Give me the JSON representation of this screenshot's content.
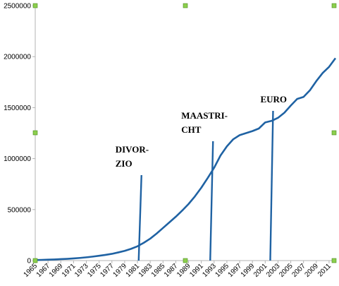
{
  "chart_data": {
    "type": "line",
    "x": [
      1965,
      1966,
      1967,
      1968,
      1969,
      1970,
      1971,
      1972,
      1973,
      1974,
      1975,
      1976,
      1977,
      1978,
      1979,
      1980,
      1981,
      1982,
      1983,
      1984,
      1985,
      1986,
      1987,
      1988,
      1989,
      1990,
      1991,
      1992,
      1993,
      1994,
      1995,
      1996,
      1997,
      1998,
      1999,
      2000,
      2001,
      2002,
      2003,
      2004,
      2005,
      2006,
      2007,
      2008,
      2009,
      2010,
      2011,
      2012
    ],
    "series": [
      {
        "color": "#1f62a3",
        "values": [
          5000,
          7000,
          9000,
          11000,
          14000,
          17000,
          21000,
          26000,
          32000,
          39000,
          47000,
          56000,
          66000,
          80000,
          95000,
          115000,
          140000,
          175000,
          215000,
          265000,
          320000,
          375000,
          430000,
          490000,
          555000,
          630000,
          715000,
          810000,
          910000,
          1030000,
          1120000,
          1190000,
          1230000,
          1250000,
          1270000,
          1295000,
          1355000,
          1370000,
          1400000,
          1450000,
          1520000,
          1585000,
          1605000,
          1670000,
          1760000,
          1840000,
          1900000,
          1985000
        ]
      }
    ],
    "xlim": [
      1965,
      2012
    ],
    "xticks": [
      1965,
      1967,
      1969,
      1971,
      1973,
      1975,
      1977,
      1979,
      1981,
      1983,
      1985,
      1987,
      1989,
      1991,
      1993,
      1995,
      1997,
      1999,
      2001,
      2003,
      2005,
      2007,
      2009,
      2011
    ],
    "ylim": [
      0,
      2500000
    ],
    "yticks": [
      0,
      500000,
      1000000,
      1500000,
      2000000,
      2500000
    ],
    "annotations": [
      {
        "lines": [
          "DIVOR-",
          "ZIO"
        ],
        "x": 1981.3
      },
      {
        "lines": [
          "MAASTRI-",
          "CHT"
        ],
        "x": 1992.5
      },
      {
        "lines": [
          "EURO"
        ],
        "x": 2001.9
      }
    ]
  }
}
